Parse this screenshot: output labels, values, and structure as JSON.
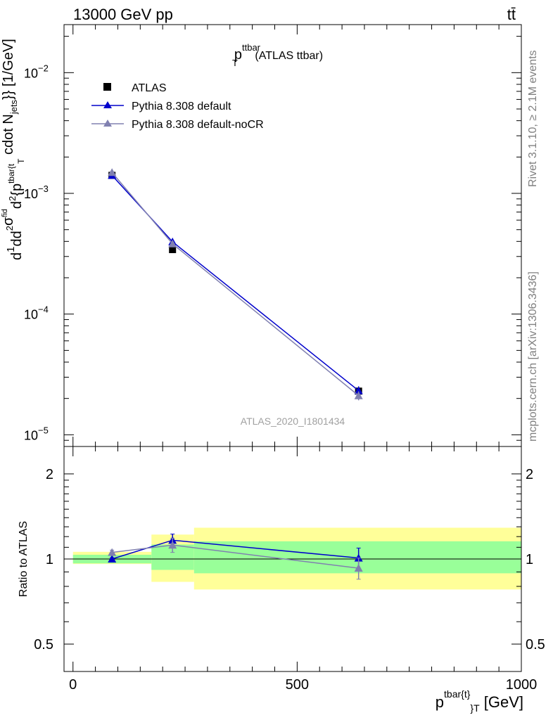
{
  "header": {
    "energy_label": "13000 GeV pp",
    "process_label": "tt̄"
  },
  "side_labels": {
    "rivet": "Rivet 3.1.10, ≥ 2.1M events",
    "mcplots": "mcplots.cern.ch [arXiv:1306.3436]"
  },
  "chart_data": [
    {
      "type": "scatter",
      "panel": "main",
      "title": {
        "main": "p",
        "sup": "ttbar",
        "sub": "T",
        "suffix": " (ATLAS ttbar)"
      },
      "ylabel": "d1dd²σᶠᶦᵈd²{p_T^tbar{t}} cdot N_jets}} [1/GeV]",
      "ylabel_parts": {
        "d1": "d",
        "one": "1",
        "d2": "d",
        "d3": "d",
        "sigma1": "σ",
        "sigma2": "σ",
        "sq": "2",
        "fid": "fid",
        "d2b": "d",
        "sq2": "2",
        "brace": "{p",
        "tbar": "tbar{t",
        "T": "T",
        "cdot": " cdot N",
        "jets": "jets",
        "close": "}} [1/GeV]"
      },
      "yscale": "log",
      "ylim": [
        8e-06,
        0.025
      ],
      "xlim": [
        -20,
        1000
      ],
      "y_ticks": [
        {
          "base": "10",
          "exp": "−2",
          "value": 0.01
        },
        {
          "base": "10",
          "exp": "−3",
          "value": 0.001
        },
        {
          "base": "10",
          "exp": "−4",
          "value": 0.0001
        },
        {
          "base": "10",
          "exp": "−5",
          "value": 1e-05
        }
      ],
      "analysis_label": "ATLAS_2020_I1801434",
      "legend_position": "top-left",
      "series": [
        {
          "name": "ATLAS",
          "marker": "square",
          "color": "#000000",
          "x": [
            87,
            222,
            637
          ],
          "y": [
            0.00141,
            0.000342,
            2.3e-05
          ],
          "yerr": [
            6e-05,
            1.5e-05,
            1.5e-06
          ]
        },
        {
          "name": "Pythia 8.308 default",
          "marker": "triangle",
          "color": "#0000cc",
          "x": [
            87,
            222,
            637
          ],
          "y": [
            0.00141,
            0.000397,
            2.32e-05
          ],
          "yerr": [
            4e-05,
            2.2e-05,
            2e-06
          ]
        },
        {
          "name": "Pythia 8.308 default-noCR",
          "marker": "triangle",
          "color": "#8080b0",
          "x": [
            87,
            222,
            637
          ],
          "y": [
            0.00149,
            0.000382,
            2.11e-05
          ],
          "yerr": [
            4e-05,
            2e-05,
            1.8e-06
          ]
        }
      ]
    },
    {
      "type": "line",
      "panel": "ratio",
      "ylabel": "Ratio to ATLAS",
      "yscale": "log",
      "ylim": [
        0.4,
        2.5
      ],
      "xlim": [
        -20,
        1000
      ],
      "y_ticks": [
        {
          "label": "2",
          "value": 2
        },
        {
          "label": "1",
          "value": 1
        },
        {
          "label": "0.5",
          "value": 0.5
        }
      ],
      "x_ticks": [
        {
          "label": "0",
          "value": 0
        },
        {
          "label": "500",
          "value": 500
        },
        {
          "label": "1000",
          "value": 1000
        }
      ],
      "xlabel_parts": {
        "main": "p",
        "sup": "tbar{t}",
        "sub": "T",
        "brace": "}",
        "unit": " [GeV]"
      },
      "bands": [
        {
          "x0": 0,
          "x1": 175,
          "inner": [
            0.965,
            1.035
          ],
          "outer": [
            0.96,
            1.06
          ]
        },
        {
          "x0": 175,
          "x1": 270,
          "inner": [
            0.915,
            1.125
          ],
          "outer": [
            0.83,
            1.22
          ]
        },
        {
          "x0": 270,
          "x1": 1000,
          "inner": [
            0.89,
            1.155
          ],
          "outer": [
            0.78,
            1.29
          ]
        }
      ],
      "band_colors": {
        "inner": "#99ff99",
        "outer": "#ffff99"
      },
      "series": [
        {
          "name": "Pythia 8.308 default",
          "color": "#0000cc",
          "x": [
            87,
            222,
            637
          ],
          "y": [
            1.0,
            1.165,
            1.008
          ],
          "yerr": [
            0.01,
            0.06,
            0.085
          ]
        },
        {
          "name": "Pythia 8.308 default-noCR",
          "color": "#8080b0",
          "x": [
            87,
            222,
            637
          ],
          "y": [
            1.055,
            1.12,
            0.928
          ],
          "yerr": [
            0.02,
            0.065,
            0.08
          ]
        }
      ]
    }
  ]
}
